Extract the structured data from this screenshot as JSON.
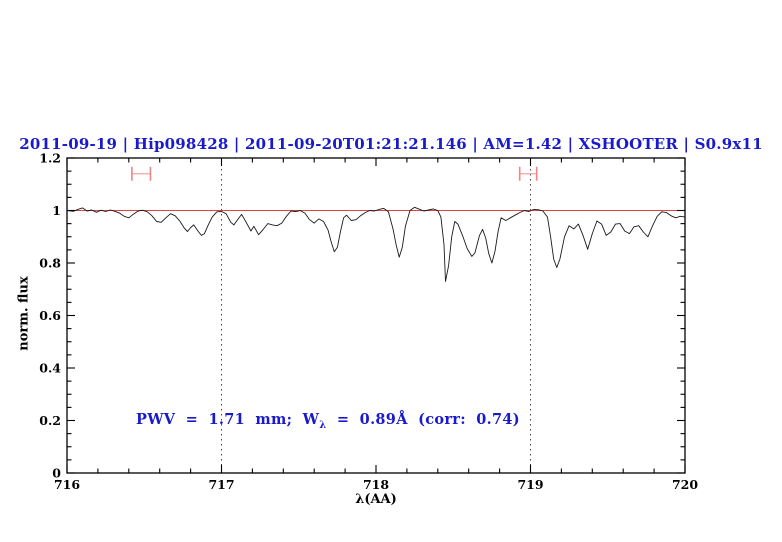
{
  "title": {
    "text": "2011-09-19 | Hip098428 | 2011-09-20T01:21:21.146 | AM=1.42 | XSHOOTER | S0.9x11",
    "color": "#1a1acd"
  },
  "annotation": {
    "part1": "PWV = 1.71 mm; W",
    "sub": "λ",
    "part2": " = 0.89Å (corr: 0.74)",
    "color": "#1a1acd"
  },
  "axes": {
    "x_label": "λ(AA)",
    "y_label": "norm. flux"
  },
  "chart_data": {
    "type": "line",
    "title": "2011-09-19 | Hip098428 | 2011-09-20T01:21:21.146 | AM=1.42 | XSHOOTER | S0.9x11",
    "xlabel": "λ(AA)",
    "ylabel": "norm. flux",
    "xlim": [
      716,
      720
    ],
    "ylim": [
      0,
      1.2
    ],
    "grid": false,
    "x_ticks": {
      "values": [
        716,
        717,
        718,
        719,
        720
      ],
      "labels": [
        "716",
        "717",
        "718",
        "719",
        "720"
      ],
      "minor_step": 0.2
    },
    "y_ticks": {
      "values": [
        0,
        0.2,
        0.4,
        0.6,
        0.8,
        1.0,
        1.2
      ],
      "labels": [
        "0",
        "0.2",
        "0.4",
        "0.6",
        "0.8",
        "1",
        "1.2"
      ],
      "minor_step": 0.05
    },
    "dotted_guides_x": [
      717,
      719
    ],
    "continuum_level": 1.0,
    "ew_markers": [
      {
        "x_start": 716.42,
        "x_end": 716.54,
        "y": 1.14
      },
      {
        "x_start": 718.93,
        "x_end": 719.04,
        "y": 1.14
      }
    ],
    "colors": {
      "spectrum": "#1a1a1a",
      "continuum": "#e04545",
      "marker": "#f08585",
      "guide": "#444444",
      "axis": "#000000",
      "text_accent": "#1a1acd"
    },
    "series": [
      {
        "name": "observed-spectrum",
        "points": [
          [
            716.0,
            1.0
          ],
          [
            716.04,
            0.997
          ],
          [
            716.07,
            1.004
          ],
          [
            716.1,
            1.01
          ],
          [
            716.13,
            0.998
          ],
          [
            716.16,
            1.002
          ],
          [
            716.19,
            0.993
          ],
          [
            716.22,
            1.001
          ],
          [
            716.25,
            0.996
          ],
          [
            716.28,
            1.002
          ],
          [
            716.31,
            0.997
          ],
          [
            716.34,
            0.99
          ],
          [
            716.37,
            0.978
          ],
          [
            716.4,
            0.972
          ],
          [
            716.43,
            0.986
          ],
          [
            716.46,
            0.998
          ],
          [
            716.49,
            1.001
          ],
          [
            716.52,
            0.995
          ],
          [
            716.55,
            0.98
          ],
          [
            716.58,
            0.958
          ],
          [
            716.61,
            0.955
          ],
          [
            716.64,
            0.972
          ],
          [
            716.67,
            0.988
          ],
          [
            716.7,
            0.98
          ],
          [
            716.73,
            0.96
          ],
          [
            716.76,
            0.932
          ],
          [
            716.78,
            0.92
          ],
          [
            716.8,
            0.935
          ],
          [
            716.82,
            0.945
          ],
          [
            716.85,
            0.92
          ],
          [
            716.87,
            0.905
          ],
          [
            716.89,
            0.912
          ],
          [
            716.91,
            0.94
          ],
          [
            716.94,
            0.975
          ],
          [
            716.97,
            0.995
          ],
          [
            717.0,
            0.996
          ],
          [
            717.03,
            0.988
          ],
          [
            717.06,
            0.955
          ],
          [
            717.08,
            0.945
          ],
          [
            717.1,
            0.962
          ],
          [
            717.13,
            0.985
          ],
          [
            717.16,
            0.955
          ],
          [
            717.19,
            0.922
          ],
          [
            717.21,
            0.94
          ],
          [
            717.24,
            0.908
          ],
          [
            717.27,
            0.928
          ],
          [
            717.3,
            0.95
          ],
          [
            717.33,
            0.945
          ],
          [
            717.36,
            0.942
          ],
          [
            717.39,
            0.952
          ],
          [
            717.42,
            0.978
          ],
          [
            717.45,
            0.998
          ],
          [
            717.48,
            0.996
          ],
          [
            717.51,
            1.0
          ],
          [
            717.54,
            0.99
          ],
          [
            717.57,
            0.965
          ],
          [
            717.6,
            0.952
          ],
          [
            717.63,
            0.968
          ],
          [
            717.66,
            0.958
          ],
          [
            717.69,
            0.925
          ],
          [
            717.71,
            0.88
          ],
          [
            717.73,
            0.843
          ],
          [
            717.75,
            0.86
          ],
          [
            717.77,
            0.92
          ],
          [
            717.79,
            0.972
          ],
          [
            717.81,
            0.982
          ],
          [
            717.84,
            0.962
          ],
          [
            717.87,
            0.965
          ],
          [
            717.9,
            0.98
          ],
          [
            717.93,
            0.992
          ],
          [
            717.96,
            1.0
          ],
          [
            717.99,
            0.998
          ],
          [
            718.02,
            1.004
          ],
          [
            718.05,
            1.008
          ],
          [
            718.08,
            0.995
          ],
          [
            718.11,
            0.93
          ],
          [
            718.13,
            0.87
          ],
          [
            718.15,
            0.822
          ],
          [
            718.17,
            0.86
          ],
          [
            718.19,
            0.94
          ],
          [
            718.22,
            1.0
          ],
          [
            718.25,
            1.012
          ],
          [
            718.28,
            1.005
          ],
          [
            718.31,
            0.998
          ],
          [
            718.34,
            1.002
          ],
          [
            718.37,
            1.006
          ],
          [
            718.4,
            1.0
          ],
          [
            718.42,
            0.975
          ],
          [
            718.44,
            0.87
          ],
          [
            718.45,
            0.73
          ],
          [
            718.47,
            0.79
          ],
          [
            718.49,
            0.9
          ],
          [
            718.51,
            0.958
          ],
          [
            718.53,
            0.948
          ],
          [
            718.56,
            0.905
          ],
          [
            718.59,
            0.855
          ],
          [
            718.62,
            0.825
          ],
          [
            718.64,
            0.838
          ],
          [
            718.67,
            0.905
          ],
          [
            718.69,
            0.928
          ],
          [
            718.71,
            0.895
          ],
          [
            718.73,
            0.835
          ],
          [
            718.75,
            0.8
          ],
          [
            718.77,
            0.845
          ],
          [
            718.79,
            0.92
          ],
          [
            718.81,
            0.972
          ],
          [
            718.84,
            0.962
          ],
          [
            718.87,
            0.972
          ],
          [
            718.9,
            0.982
          ],
          [
            718.93,
            0.992
          ],
          [
            718.96,
            1.0
          ],
          [
            718.99,
            0.996
          ],
          [
            719.02,
            1.004
          ],
          [
            719.05,
            1.003
          ],
          [
            719.08,
            0.998
          ],
          [
            719.11,
            0.975
          ],
          [
            719.13,
            0.9
          ],
          [
            719.15,
            0.815
          ],
          [
            719.17,
            0.783
          ],
          [
            719.19,
            0.815
          ],
          [
            719.22,
            0.9
          ],
          [
            719.25,
            0.942
          ],
          [
            719.28,
            0.93
          ],
          [
            719.31,
            0.948
          ],
          [
            719.34,
            0.905
          ],
          [
            719.37,
            0.852
          ],
          [
            719.4,
            0.912
          ],
          [
            719.43,
            0.96
          ],
          [
            719.46,
            0.948
          ],
          [
            719.49,
            0.905
          ],
          [
            719.52,
            0.918
          ],
          [
            719.55,
            0.948
          ],
          [
            719.58,
            0.95
          ],
          [
            719.61,
            0.922
          ],
          [
            719.64,
            0.912
          ],
          [
            719.67,
            0.938
          ],
          [
            719.7,
            0.942
          ],
          [
            719.73,
            0.918
          ],
          [
            719.76,
            0.9
          ],
          [
            719.79,
            0.942
          ],
          [
            719.82,
            0.978
          ],
          [
            719.85,
            0.995
          ],
          [
            719.88,
            0.992
          ],
          [
            719.91,
            0.98
          ],
          [
            719.94,
            0.972
          ],
          [
            719.97,
            0.978
          ],
          [
            720.0,
            0.975
          ]
        ]
      },
      {
        "name": "continuum-fit",
        "points": [
          [
            716.0,
            1.0
          ],
          [
            720.0,
            1.0
          ]
        ]
      }
    ]
  }
}
